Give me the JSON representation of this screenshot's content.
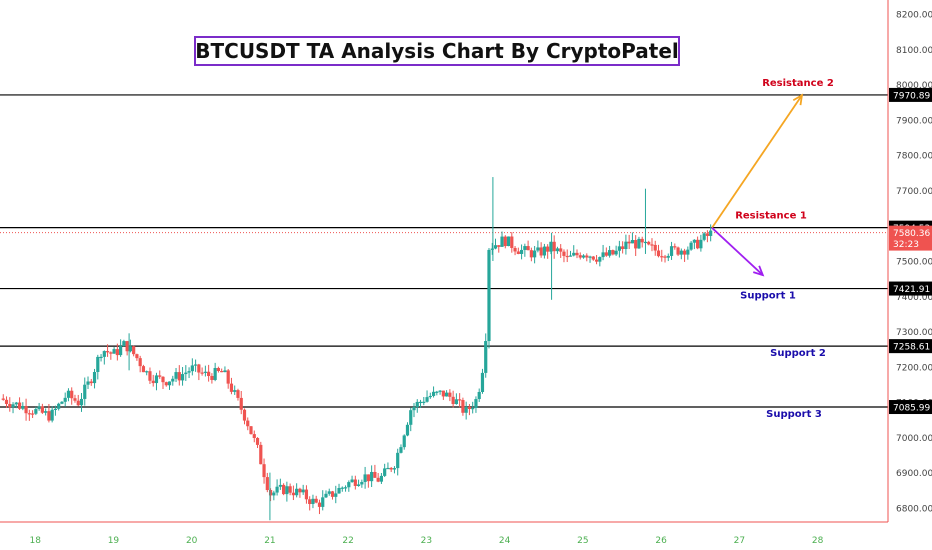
{
  "chart_data": {
    "type": "candlestick",
    "title": "BTCUSDT TA Analysis Chart By CryptoPatel",
    "x_ticks": [
      "18",
      "19",
      "20",
      "21",
      "22",
      "23",
      "24",
      "25",
      "26",
      "27",
      "28"
    ],
    "y_ticks": [
      "6800.00",
      "6900.00",
      "7000.00",
      "7100.00",
      "7200.00",
      "7300.00",
      "7400.00",
      "7500.00",
      "7600.00",
      "7700.00",
      "7800.00",
      "7900.00",
      "8000.00",
      "8100.00",
      "8200.00"
    ],
    "ylim": [
      6760,
      8240
    ],
    "xlim": [
      17.55,
      28.9
    ],
    "current_price": "7580.36",
    "countdown": "32:23",
    "levels": [
      {
        "name": "Resistance 2",
        "value": 7970.89,
        "price_label": "7970.89",
        "color": "#d0021b"
      },
      {
        "name": "Resistance 1",
        "value": 7594.53,
        "price_label": "7594.53",
        "color": "#d0021b"
      },
      {
        "name": "Support 1",
        "value": 7421.91,
        "price_label": "7421.91",
        "color": "#1a0dab"
      },
      {
        "name": "Support 2",
        "value": 7258.61,
        "price_label": "7258.61",
        "color": "#1a0dab"
      },
      {
        "name": "Support 3",
        "value": 7085.99,
        "price_label": "7085.99",
        "color": "#1a0dab"
      }
    ],
    "projections": [
      {
        "direction": "up",
        "from": [
          26.65,
          7594
        ],
        "to": [
          27.8,
          7970
        ],
        "color": "#f5a623"
      },
      {
        "direction": "down",
        "from": [
          26.65,
          7594
        ],
        "to": [
          27.3,
          7460
        ],
        "color": "#a020f0"
      }
    ],
    "price_path": [
      [
        17.55,
        7110
      ],
      [
        17.8,
        7090
      ],
      [
        18.0,
        7075
      ],
      [
        18.2,
        7060
      ],
      [
        18.4,
        7120
      ],
      [
        18.55,
        7100
      ],
      [
        18.7,
        7160
      ],
      [
        18.85,
        7250
      ],
      [
        19.0,
        7235
      ],
      [
        19.15,
        7265
      ],
      [
        19.3,
        7225
      ],
      [
        19.45,
        7175
      ],
      [
        19.65,
        7160
      ],
      [
        19.85,
        7175
      ],
      [
        20.0,
        7195
      ],
      [
        20.2,
        7175
      ],
      [
        20.4,
        7185
      ],
      [
        20.55,
        7120
      ],
      [
        20.7,
        7050
      ],
      [
        20.85,
        6960
      ],
      [
        21.0,
        6840
      ],
      [
        21.2,
        6855
      ],
      [
        21.4,
        6840
      ],
      [
        21.6,
        6810
      ],
      [
        21.8,
        6840
      ],
      [
        22.0,
        6870
      ],
      [
        22.2,
        6890
      ],
      [
        22.4,
        6880
      ],
      [
        22.6,
        6930
      ],
      [
        22.8,
        7080
      ],
      [
        23.0,
        7115
      ],
      [
        23.2,
        7125
      ],
      [
        23.35,
        7110
      ],
      [
        23.5,
        7070
      ],
      [
        23.65,
        7110
      ],
      [
        23.75,
        7240
      ],
      [
        23.8,
        7540
      ],
      [
        24.0,
        7560
      ],
      [
        24.2,
        7530
      ],
      [
        24.4,
        7520
      ],
      [
        24.6,
        7540
      ],
      [
        24.8,
        7505
      ],
      [
        25.0,
        7525
      ],
      [
        25.2,
        7510
      ],
      [
        25.4,
        7520
      ],
      [
        25.6,
        7555
      ],
      [
        25.8,
        7540
      ],
      [
        26.0,
        7525
      ],
      [
        26.2,
        7530
      ],
      [
        26.4,
        7540
      ],
      [
        26.65,
        7580
      ]
    ],
    "spikes": [
      {
        "x": 23.85,
        "high": 7738,
        "low": 7500
      },
      {
        "x": 24.6,
        "high": 7580,
        "low": 7390
      },
      {
        "x": 25.8,
        "high": 7705,
        "low": 7520
      },
      {
        "x": 21.0,
        "high": 6900,
        "low": 6765
      },
      {
        "x": 19.2,
        "high": 7295,
        "low": 7190
      }
    ],
    "colors": {
      "up": "#26a69a",
      "down": "#ef5350",
      "level_line": "#000000",
      "current_line": "#ef5350",
      "x_tick_text": "#4caf50",
      "y_tick_text": "#444444",
      "label_bg": "#000000",
      "label_text": "#ffffff"
    }
  }
}
